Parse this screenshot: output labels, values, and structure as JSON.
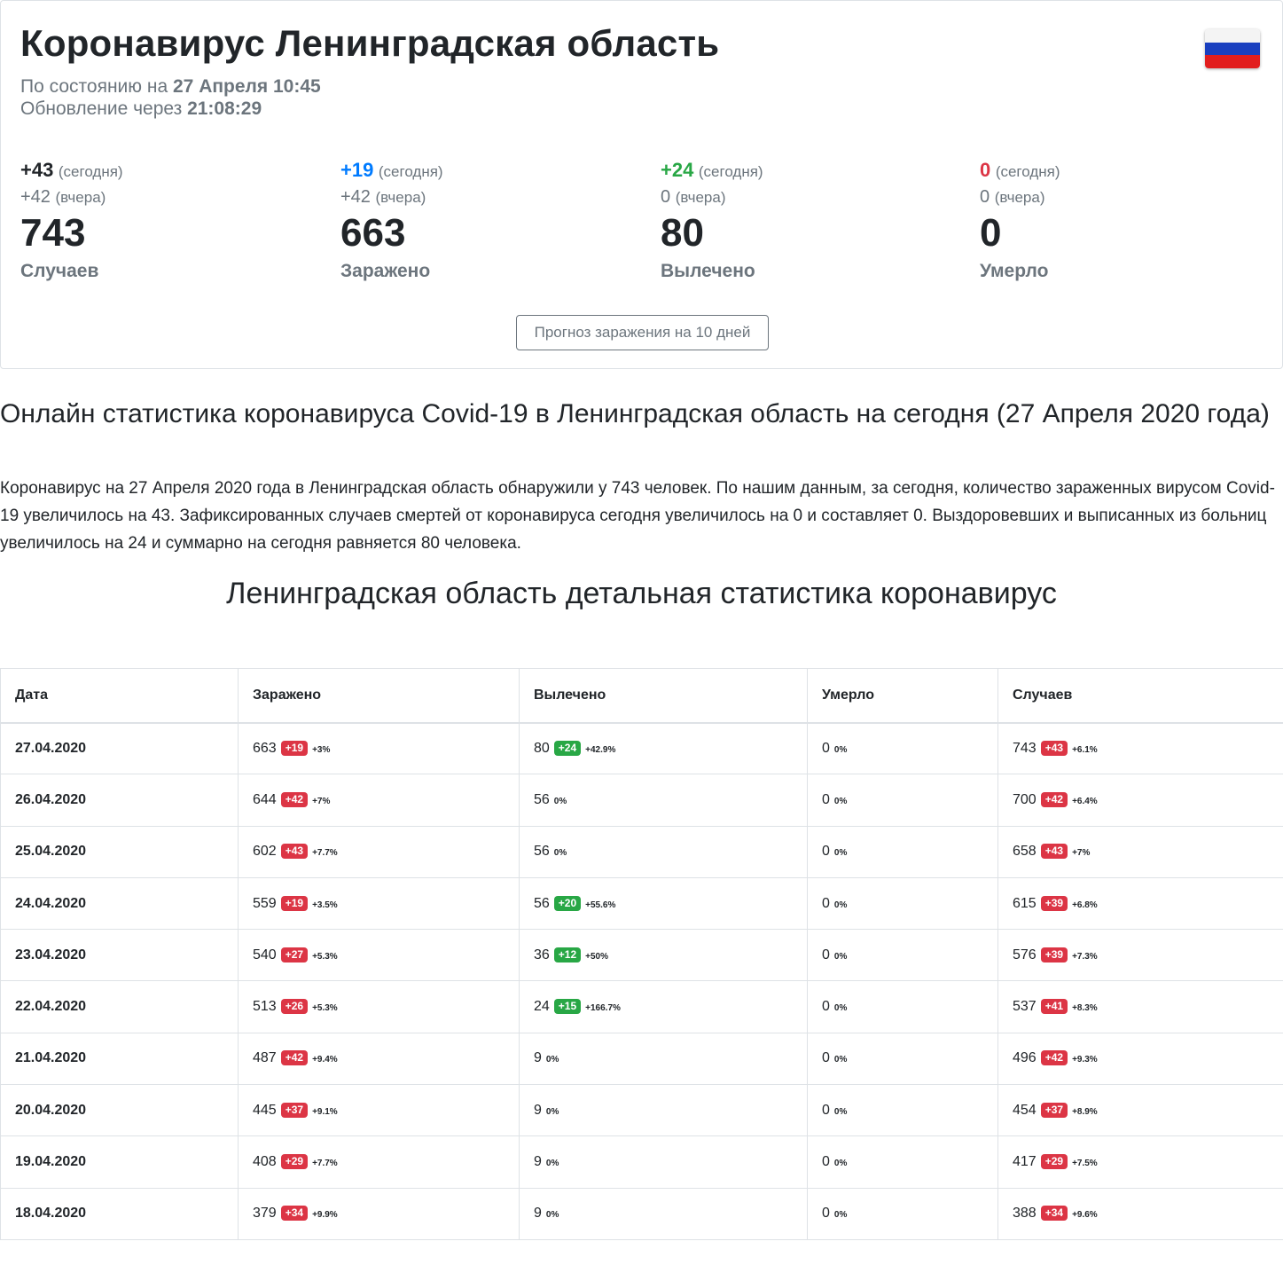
{
  "header": {
    "title": "Коронавирус Ленинградская область",
    "status_prefix": "По состоянию на",
    "status_date": "27 Апреля 10:45",
    "update_prefix": "Обновление через",
    "update_countdown": "21:08:29",
    "flag_icon": "russia-flag-icon"
  },
  "stats": [
    {
      "today": "+43",
      "today_label": "(сегодня)",
      "yesterday": "+42",
      "yesterday_label": "(вчера)",
      "total": "743",
      "label": "Случаев",
      "color": "#212529"
    },
    {
      "today": "+19",
      "today_label": "(сегодня)",
      "yesterday": "+42",
      "yesterday_label": "(вчера)",
      "total": "663",
      "label": "Заражено",
      "color": "#007bff"
    },
    {
      "today": "+24",
      "today_label": "(сегодня)",
      "yesterday": "0",
      "yesterday_label": "(вчера)",
      "total": "80",
      "label": "Вылечено",
      "color": "#28a745"
    },
    {
      "today": "0",
      "today_label": "(сегодня)",
      "yesterday": "0",
      "yesterday_label": "(вчера)",
      "total": "0",
      "label": "Умерло",
      "color": "#dc3545"
    }
  ],
  "forecast_button": "Прогноз заражения на 10 дней",
  "article": {
    "heading": "Онлайн статистика коронавируса Covid-19 в Ленинградская область на сегодня (27 Апреля 2020 года)",
    "paragraph": "Коронавирус на 27 Апреля 2020 года в Ленинградская область обнаружили у 743 человек. По нашим данным, за сегодня, количество зараженных вирусом Covid-19 увеличилось на 43. Зафиксированных случаев смертей от коронавируса сегодня увеличилось на 0 и составляет 0. Выздоровевших и выписанных из больниц увеличилось на 24 и суммарно на сегодня равняется 80 человека."
  },
  "table": {
    "title": "Ленинградская область детальная статистика коронавирус",
    "headers": {
      "date": "Дата",
      "infected": "Заражено",
      "recovered": "Вылечено",
      "died": "Умерло",
      "cases": "Случаев"
    },
    "rows": [
      {
        "date": "27.04.2020",
        "infected": {
          "v": "663",
          "d": "+19",
          "p": "+3%"
        },
        "recovered": {
          "v": "80",
          "d": "+24",
          "p": "+42.9%"
        },
        "died": {
          "v": "0",
          "d": "",
          "p": "0%"
        },
        "cases": {
          "v": "743",
          "d": "+43",
          "p": "+6.1%"
        }
      },
      {
        "date": "26.04.2020",
        "infected": {
          "v": "644",
          "d": "+42",
          "p": "+7%"
        },
        "recovered": {
          "v": "56",
          "d": "",
          "p": "0%"
        },
        "died": {
          "v": "0",
          "d": "",
          "p": "0%"
        },
        "cases": {
          "v": "700",
          "d": "+42",
          "p": "+6.4%"
        }
      },
      {
        "date": "25.04.2020",
        "infected": {
          "v": "602",
          "d": "+43",
          "p": "+7.7%"
        },
        "recovered": {
          "v": "56",
          "d": "",
          "p": "0%"
        },
        "died": {
          "v": "0",
          "d": "",
          "p": "0%"
        },
        "cases": {
          "v": "658",
          "d": "+43",
          "p": "+7%"
        }
      },
      {
        "date": "24.04.2020",
        "infected": {
          "v": "559",
          "d": "+19",
          "p": "+3.5%"
        },
        "recovered": {
          "v": "56",
          "d": "+20",
          "p": "+55.6%"
        },
        "died": {
          "v": "0",
          "d": "",
          "p": "0%"
        },
        "cases": {
          "v": "615",
          "d": "+39",
          "p": "+6.8%"
        }
      },
      {
        "date": "23.04.2020",
        "infected": {
          "v": "540",
          "d": "+27",
          "p": "+5.3%"
        },
        "recovered": {
          "v": "36",
          "d": "+12",
          "p": "+50%"
        },
        "died": {
          "v": "0",
          "d": "",
          "p": "0%"
        },
        "cases": {
          "v": "576",
          "d": "+39",
          "p": "+7.3%"
        }
      },
      {
        "date": "22.04.2020",
        "infected": {
          "v": "513",
          "d": "+26",
          "p": "+5.3%"
        },
        "recovered": {
          "v": "24",
          "d": "+15",
          "p": "+166.7%"
        },
        "died": {
          "v": "0",
          "d": "",
          "p": "0%"
        },
        "cases": {
          "v": "537",
          "d": "+41",
          "p": "+8.3%"
        }
      },
      {
        "date": "21.04.2020",
        "infected": {
          "v": "487",
          "d": "+42",
          "p": "+9.4%"
        },
        "recovered": {
          "v": "9",
          "d": "",
          "p": "0%"
        },
        "died": {
          "v": "0",
          "d": "",
          "p": "0%"
        },
        "cases": {
          "v": "496",
          "d": "+42",
          "p": "+9.3%"
        }
      },
      {
        "date": "20.04.2020",
        "infected": {
          "v": "445",
          "d": "+37",
          "p": "+9.1%"
        },
        "recovered": {
          "v": "9",
          "d": "",
          "p": "0%"
        },
        "died": {
          "v": "0",
          "d": "",
          "p": "0%"
        },
        "cases": {
          "v": "454",
          "d": "+37",
          "p": "+8.9%"
        }
      },
      {
        "date": "19.04.2020",
        "infected": {
          "v": "408",
          "d": "+29",
          "p": "+7.7%"
        },
        "recovered": {
          "v": "9",
          "d": "",
          "p": "0%"
        },
        "died": {
          "v": "0",
          "d": "",
          "p": "0%"
        },
        "cases": {
          "v": "417",
          "d": "+29",
          "p": "+7.5%"
        }
      },
      {
        "date": "18.04.2020",
        "infected": {
          "v": "379",
          "d": "+34",
          "p": "+9.9%"
        },
        "recovered": {
          "v": "9",
          "d": "",
          "p": "0%"
        },
        "died": {
          "v": "0",
          "d": "",
          "p": "0%"
        },
        "cases": {
          "v": "388",
          "d": "+34",
          "p": "+9.6%"
        }
      }
    ]
  }
}
